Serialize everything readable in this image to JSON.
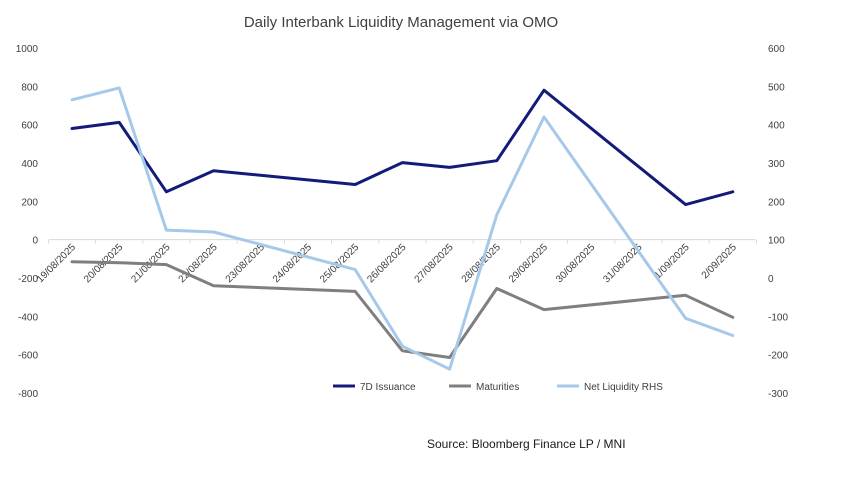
{
  "chart_data": {
    "type": "line",
    "title": "Daily Interbank Liquidity Management via OMO",
    "source": "Source: Bloomberg Finance LP / MNI",
    "categories": [
      "19/08/2025",
      "20/08/2025",
      "21/08/2025",
      "22/08/2025",
      "23/08/2025",
      "24/08/2025",
      "25/08/2025",
      "26/08/2025",
      "27/08/2025",
      "28/08/2025",
      "29/08/2025",
      "30/08/2025",
      "31/08/2025",
      "1/09/2025",
      "2/09/2025"
    ],
    "y_left": {
      "min": -800,
      "max": 1000,
      "ticks": [
        1000,
        800,
        600,
        400,
        200,
        0,
        -200,
        -400,
        -600,
        -800
      ]
    },
    "y_right": {
      "min": -300,
      "max": 600,
      "ticks": [
        600,
        500,
        400,
        300,
        200,
        100,
        0,
        -100,
        -200,
        -300
      ]
    },
    "series": [
      {
        "name": "7D Issuance",
        "axis": "left",
        "color": "#131a7a",
        "points": [
          [
            0,
            580
          ],
          [
            1,
            612
          ],
          [
            2,
            250
          ],
          [
            3,
            360
          ],
          [
            6,
            288
          ],
          [
            7,
            402
          ],
          [
            8,
            377
          ],
          [
            9,
            412
          ],
          [
            10,
            780
          ],
          [
            13,
            183
          ],
          [
            14,
            250
          ]
        ]
      },
      {
        "name": "Maturities",
        "axis": "left",
        "color": "#7f7f7f",
        "points": [
          [
            0,
            -115
          ],
          [
            1,
            -120
          ],
          [
            2,
            -130
          ],
          [
            3,
            -240
          ],
          [
            6,
            -270
          ],
          [
            7,
            -580
          ],
          [
            8,
            -615
          ],
          [
            9,
            -255
          ],
          [
            10,
            -365
          ],
          [
            13,
            -290
          ],
          [
            14,
            -405
          ]
        ]
      },
      {
        "name": "Net Liquidity RHS",
        "axis": "right",
        "color": "#a6c9ea",
        "points": [
          [
            0,
            465
          ],
          [
            1,
            496
          ],
          [
            2,
            125
          ],
          [
            3,
            120
          ],
          [
            6,
            22
          ],
          [
            7,
            -178
          ],
          [
            8,
            -238
          ],
          [
            9,
            165
          ],
          [
            10,
            420
          ],
          [
            13,
            -105
          ],
          [
            14,
            -150
          ]
        ]
      }
    ],
    "legend": [
      "7D Issuance",
      "Maturities",
      "Net Liquidity RHS"
    ],
    "legend_position": "bottom"
  }
}
